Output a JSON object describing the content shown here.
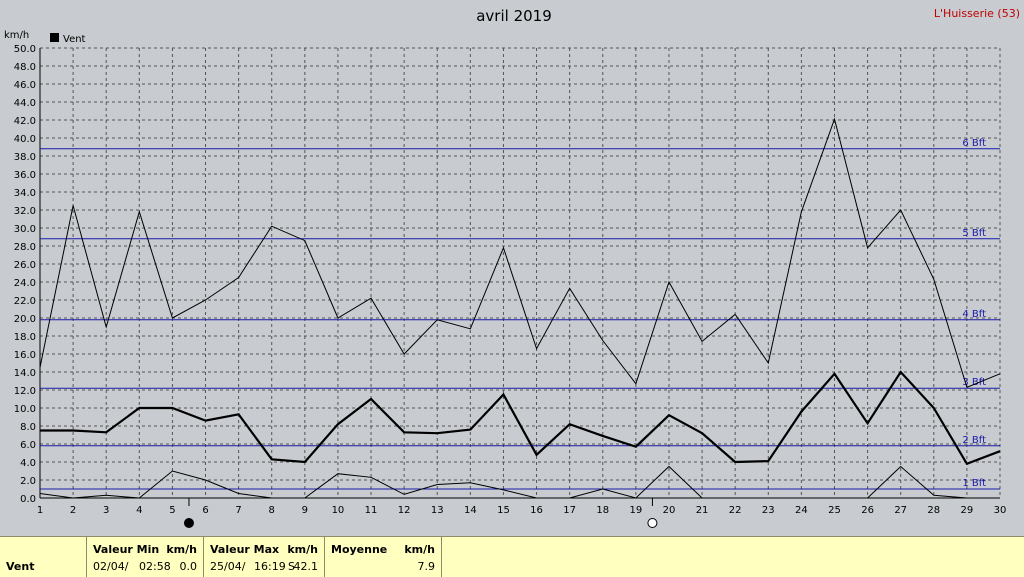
{
  "chart_data": {
    "type": "line",
    "title": "avril 2019",
    "location": "L'Huisserie (53)",
    "ylabel": "km/h",
    "ylim": [
      0,
      50
    ],
    "yticks": [
      "0.0",
      "2.0",
      "4.0",
      "6.0",
      "8.0",
      "10.0",
      "12.0",
      "14.0",
      "16.0",
      "18.0",
      "20.0",
      "22.0",
      "24.0",
      "26.0",
      "28.0",
      "30.0",
      "32.0",
      "34.0",
      "36.0",
      "38.0",
      "40.0",
      "42.0",
      "44.0",
      "46.0",
      "48.0",
      "50.0"
    ],
    "x": [
      1,
      2,
      3,
      4,
      5,
      6,
      7,
      8,
      9,
      10,
      11,
      12,
      13,
      14,
      15,
      16,
      17,
      18,
      19,
      20,
      21,
      22,
      23,
      24,
      25,
      26,
      27,
      28,
      29,
      30
    ],
    "xticks": [
      "1",
      "2",
      "3",
      "4",
      "5",
      "6",
      "7",
      "8",
      "9",
      "10",
      "11",
      "12",
      "13",
      "14",
      "15",
      "16",
      "17",
      "18",
      "19",
      "20",
      "21",
      "22",
      "23",
      "24",
      "25",
      "26",
      "27",
      "28",
      "29",
      "30"
    ],
    "legend": {
      "label": "Vent",
      "color": "#000000",
      "placement": "top-left"
    },
    "grid": true,
    "series": [
      {
        "line": "max",
        "color": "#000000",
        "values": [
          14.5,
          32.5,
          19.0,
          31.8,
          20.0,
          22.0,
          24.5,
          30.2,
          28.6,
          20.0,
          22.2,
          16.0,
          19.8,
          18.8,
          27.8,
          16.6,
          23.3,
          17.5,
          12.7,
          24.0,
          17.4,
          20.4,
          15.0,
          31.8,
          42.1,
          27.8,
          32.0,
          24.3,
          12.3,
          13.8
        ]
      },
      {
        "line": "mean",
        "color": "#000000",
        "values": [
          7.5,
          7.5,
          7.3,
          10.0,
          10.0,
          8.6,
          9.3,
          4.3,
          4.0,
          8.2,
          11.0,
          7.3,
          7.2,
          7.6,
          11.5,
          4.8,
          8.2,
          6.9,
          5.7,
          9.2,
          7.2,
          4.0,
          4.1,
          9.6,
          13.8,
          8.3,
          14.0,
          10.0,
          3.8,
          5.2
        ]
      },
      {
        "line": "min",
        "color": "#000000",
        "values": [
          0.5,
          0.0,
          0.3,
          0.0,
          3.0,
          2.0,
          0.5,
          0.0,
          0.0,
          2.7,
          2.3,
          0.4,
          1.5,
          1.7,
          0.9,
          0.0,
          0.0,
          1.0,
          0.0,
          3.5,
          0.0,
          0.0,
          0.0,
          0.0,
          0.0,
          0.0,
          3.5,
          0.3,
          0.0,
          0.0
        ]
      }
    ],
    "beaufort": [
      {
        "label": "1 Bft",
        "value": 1.0
      },
      {
        "label": "2 Bft",
        "value": 5.8
      },
      {
        "label": "3 Bft",
        "value": 12.2
      },
      {
        "label": "4 Bft",
        "value": 19.8
      },
      {
        "label": "5 Bft",
        "value": 28.8
      },
      {
        "label": "6 Bft",
        "value": 38.8
      }
    ],
    "moon_phases": [
      {
        "day": 5.5,
        "type": "new"
      },
      {
        "day": 19.5,
        "type": "full"
      }
    ]
  },
  "footer": {
    "row_label": "Vent",
    "min": {
      "header": "Valeur Min",
      "unit": "km/h",
      "date": "02/04/",
      "time": "02:58",
      "value": "0.0"
    },
    "max": {
      "header": "Valeur Max",
      "unit": "km/h",
      "date": "25/04/",
      "time": "16:19",
      "dir": "S",
      "value": "42.1"
    },
    "mean": {
      "header": "Moyenne",
      "unit": "km/h",
      "value": "7.9"
    }
  }
}
